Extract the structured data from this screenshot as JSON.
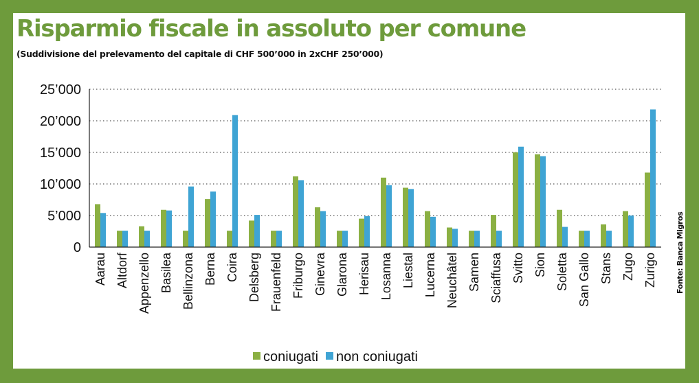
{
  "source": "Fonte: Banca Migros",
  "colors": {
    "coniugati": "#8bb043",
    "non_coniugati": "#3fa4d4",
    "frame": "#6e9b3c"
  },
  "chart_data": {
    "type": "bar",
    "title": "Risparmio fiscale in assoluto per comune",
    "subtitle": "(Suddivisione del prelevamento del capitale di CHF 500’000 in 2xCHF 250’000)",
    "categories": [
      "Aarau",
      "Altdorf",
      "Appenzello",
      "Basilea",
      "Bellinzona",
      "Berna",
      "Coira",
      "Delsberg",
      "Frauenfeld",
      "Friburgo",
      "Ginevra",
      "Glarona",
      "Herisau",
      "Losanna",
      "Liestal",
      "Lucerna",
      "Neuchâtel",
      "Samen",
      "Sciaffusa",
      "Svitto",
      "Sion",
      "Soletta",
      "San Gallo",
      "Stans",
      "Zugo",
      "Zurigo"
    ],
    "series": [
      {
        "name": "coniugati",
        "values": [
          6800,
          2600,
          3300,
          5900,
          2600,
          7600,
          2600,
          4200,
          2600,
          11200,
          6300,
          2600,
          4500,
          11000,
          9400,
          5700,
          3100,
          2600,
          5100,
          15000,
          14700,
          5900,
          2600,
          3600,
          5700,
          11800
        ]
      },
      {
        "name": "non coniugati",
        "values": [
          5400,
          2600,
          2600,
          5800,
          9600,
          8800,
          20900,
          5100,
          2600,
          10600,
          5700,
          2600,
          4900,
          9800,
          9200,
          4800,
          2900,
          2600,
          2600,
          15900,
          14400,
          3200,
          2600,
          2600,
          5000,
          21800
        ]
      }
    ],
    "yticks": [
      "0",
      "5’000",
      "10’000",
      "15’000",
      "20’000",
      "25’000"
    ],
    "ylim": [
      0,
      25000
    ],
    "grid": true,
    "legend": "bottom"
  }
}
